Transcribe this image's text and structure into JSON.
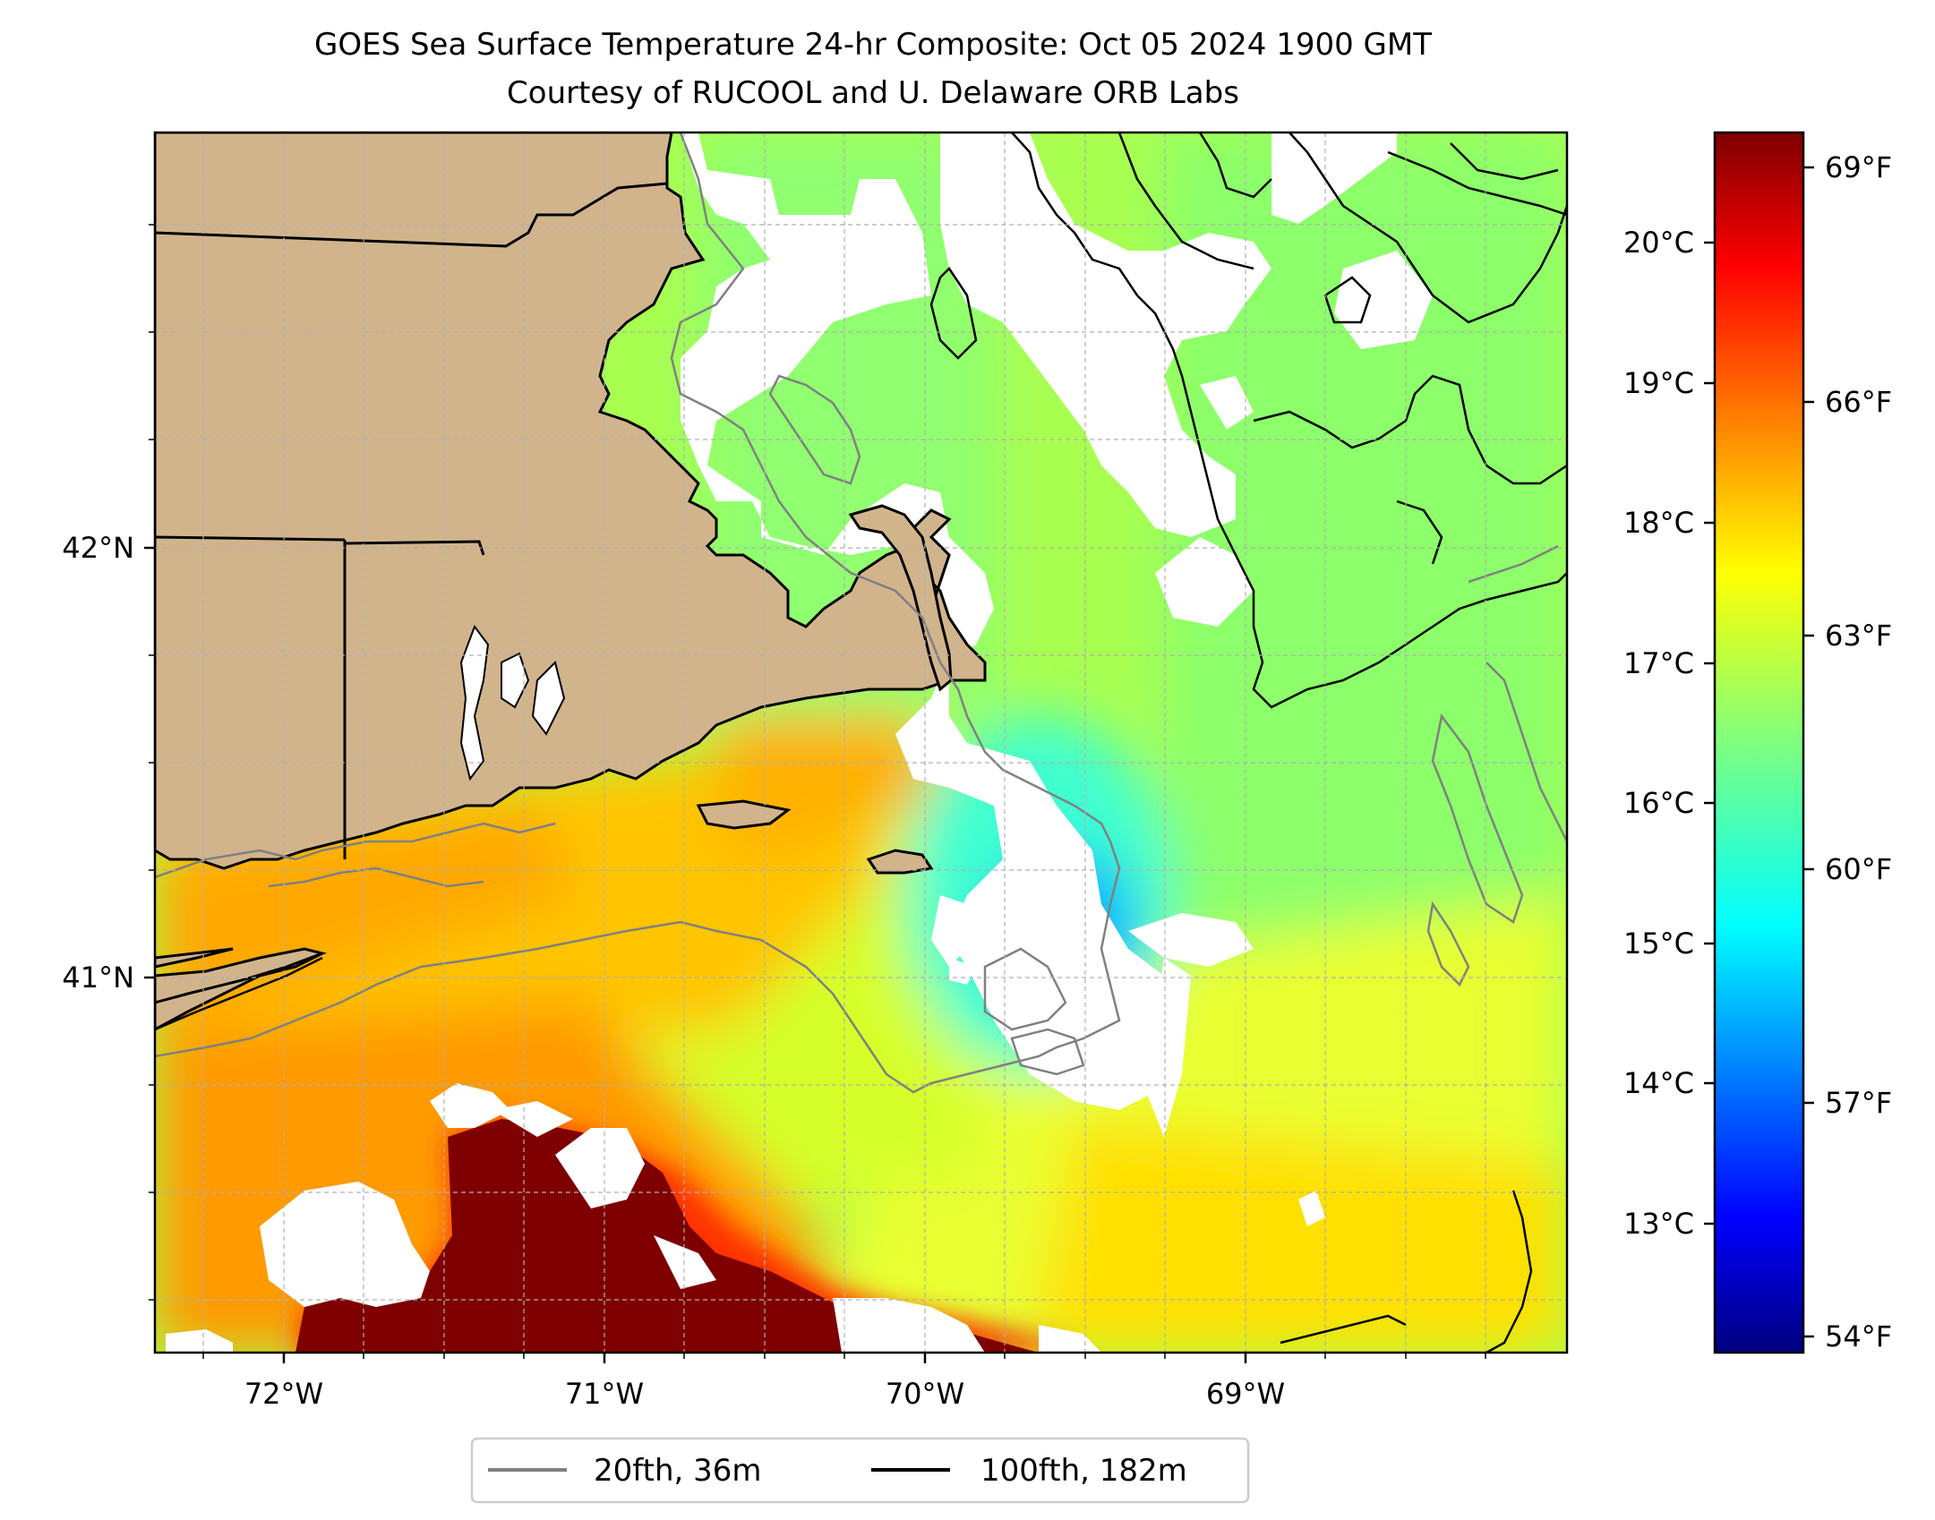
{
  "title": {
    "line1": "GOES Sea Surface Temperature 24-hr Composite: Oct 05 2024 1900 GMT",
    "line2": "Courtesy of RUCOOL and U. Delaware ORB Labs"
  },
  "map": {
    "longitude_ticks": [
      "72°W",
      "71°W",
      "70°W",
      "69°W"
    ],
    "latitude_ticks": [
      "42°N",
      "41°N"
    ],
    "gridlines": true,
    "colors": {
      "land": "#d2b48c",
      "no_data": "#ffffff",
      "isobath_20fth": "#808080",
      "isobath_100fth": "#000000"
    },
    "shaded_field": "sea surface temperature",
    "features": [
      "coastline",
      "state borders",
      "Cape Cod",
      "Nantucket",
      "Martha's Vineyard"
    ]
  },
  "colorbar": {
    "celsius_ticks": [
      "20°C",
      "19°C",
      "18°C",
      "17°C",
      "16°C",
      "15°C",
      "14°C",
      "13°C"
    ],
    "fahrenheit_ticks": [
      "69°F",
      "66°F",
      "63°F",
      "60°F",
      "57°F",
      "54°F"
    ],
    "colormap": "jet"
  },
  "legend": {
    "placement": "bottom-center",
    "items": [
      {
        "label": "20fth, 36m",
        "color": "#808080"
      },
      {
        "label": "100fth, 182m",
        "color": "#000000"
      }
    ]
  }
}
